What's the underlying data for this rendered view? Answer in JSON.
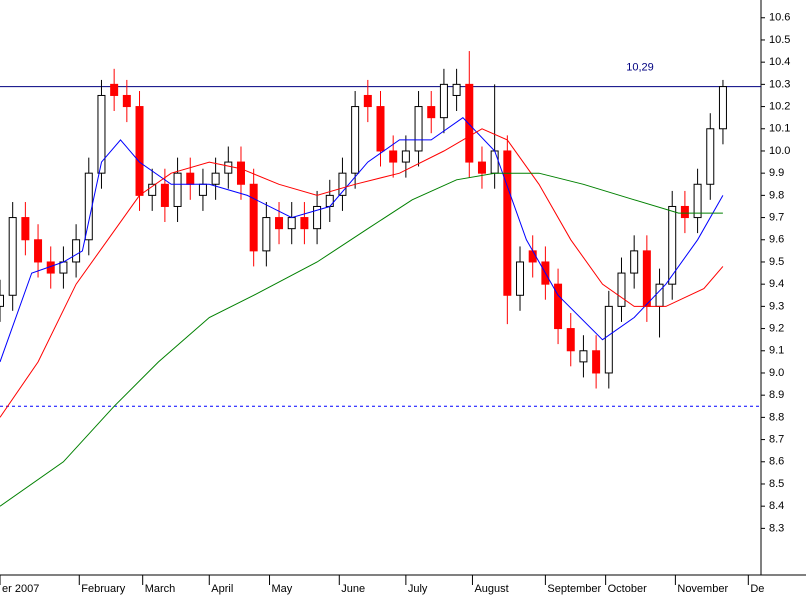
{
  "chart_data": {
    "type": "candlestick",
    "xlim": [
      0,
      240
    ],
    "ylim": [
      8.09,
      10.68
    ],
    "xticks": [
      {
        "value": 0,
        "label": "er 2007"
      },
      {
        "value": 25,
        "label": "February"
      },
      {
        "value": 45,
        "label": "March"
      },
      {
        "value": 66,
        "label": "April"
      },
      {
        "value": 85,
        "label": "May"
      },
      {
        "value": 107,
        "label": "June"
      },
      {
        "value": 128,
        "label": "July"
      },
      {
        "value": 149,
        "label": "August"
      },
      {
        "value": 172,
        "label": "September"
      },
      {
        "value": 191,
        "label": "October"
      },
      {
        "value": 213,
        "label": "November"
      },
      {
        "value": 236,
        "label": "De"
      }
    ],
    "yticks": [
      8.3,
      8.4,
      8.5,
      8.6,
      8.7,
      8.8,
      8.9,
      {
        "value": 9,
        "label": "9.0"
      },
      9.1,
      9.2,
      9.3,
      9.4,
      9.5,
      9.6,
      9.7,
      9.8,
      9.9,
      {
        "value": 10,
        "label": "10.0"
      },
      10.1,
      10.2,
      10.3,
      10.4,
      10.5,
      10.6
    ],
    "candles": {
      "up_color": "#ffffff",
      "down_color": "#ff0000",
      "x": [
        0,
        4,
        8,
        12,
        16,
        20,
        24,
        28,
        32,
        36,
        40,
        44,
        48,
        52,
        56,
        60,
        64,
        68,
        72,
        76,
        80,
        84,
        88,
        92,
        96,
        100,
        104,
        108,
        112,
        116,
        120,
        124,
        128,
        132,
        136,
        140,
        144,
        148,
        152,
        156,
        160,
        164,
        168,
        172,
        176,
        180,
        184,
        188,
        192,
        196,
        200,
        204,
        208,
        212,
        216,
        220,
        224,
        228
      ],
      "open": [
        9.3,
        9.35,
        9.7,
        9.6,
        9.5,
        9.45,
        9.5,
        9.6,
        9.9,
        10.3,
        10.25,
        10.2,
        9.8,
        9.85,
        9.75,
        9.9,
        9.8,
        9.85,
        9.9,
        9.95,
        9.85,
        9.55,
        9.7,
        9.65,
        9.7,
        9.65,
        9.75,
        9.8,
        9.9,
        10.25,
        10.2,
        10.0,
        9.95,
        10.0,
        10.2,
        10.15,
        10.25,
        10.3,
        9.95,
        9.9,
        10.0,
        9.35,
        9.55,
        9.5,
        9.4,
        9.2,
        9.05,
        9.1,
        9.0,
        9.3,
        9.45,
        9.55,
        9.3,
        9.4,
        9.75,
        9.7,
        9.85,
        10.1
      ],
      "high": [
        9.42,
        9.77,
        9.77,
        9.67,
        9.57,
        9.57,
        9.67,
        9.97,
        10.32,
        10.37,
        10.32,
        10.27,
        9.92,
        9.92,
        9.97,
        9.97,
        9.92,
        9.97,
        10.02,
        10.02,
        9.92,
        9.77,
        9.77,
        9.77,
        9.77,
        9.82,
        9.87,
        9.97,
        10.27,
        10.32,
        10.27,
        10.07,
        10.07,
        10.27,
        10.27,
        10.37,
        10.37,
        10.45,
        10.02,
        10.3,
        10.07,
        9.57,
        9.62,
        9.57,
        9.47,
        9.27,
        9.17,
        9.17,
        9.37,
        9.52,
        9.62,
        9.62,
        9.47,
        9.82,
        9.82,
        9.92,
        10.17,
        10.32
      ],
      "low": [
        9.23,
        9.28,
        9.53,
        9.43,
        9.38,
        9.38,
        9.43,
        9.53,
        9.83,
        10.18,
        10.13,
        9.73,
        9.73,
        9.68,
        9.68,
        9.78,
        9.73,
        9.78,
        9.83,
        9.78,
        9.48,
        9.48,
        9.58,
        9.58,
        9.58,
        9.58,
        9.68,
        9.73,
        9.83,
        10.13,
        9.93,
        9.88,
        9.88,
        9.93,
        10.08,
        10.08,
        10.18,
        9.88,
        9.83,
        9.83,
        9.22,
        9.28,
        9.43,
        9.33,
        9.13,
        9.03,
        8.98,
        8.93,
        8.93,
        9.23,
        9.38,
        9.23,
        9.16,
        9.33,
        9.63,
        9.63,
        9.78,
        10.03
      ],
      "close": [
        9.35,
        9.7,
        9.6,
        9.5,
        9.45,
        9.5,
        9.6,
        9.9,
        10.25,
        10.25,
        10.2,
        9.8,
        9.85,
        9.75,
        9.9,
        9.85,
        9.85,
        9.9,
        9.95,
        9.85,
        9.55,
        9.7,
        9.65,
        9.7,
        9.65,
        9.75,
        9.8,
        9.9,
        10.2,
        10.2,
        10.0,
        9.95,
        10.0,
        10.2,
        10.15,
        10.3,
        10.3,
        9.95,
        9.9,
        10.0,
        9.35,
        9.5,
        9.5,
        9.4,
        9.2,
        9.1,
        9.1,
        9.0,
        9.3,
        9.45,
        9.55,
        9.3,
        9.4,
        9.75,
        9.7,
        9.85,
        10.1,
        10.29
      ]
    },
    "series": [
      {
        "color": "#0000ff",
        "x": [
          0,
          10,
          20,
          26,
          32,
          38,
          44,
          54,
          66,
          78,
          92,
          104,
          116,
          126,
          136,
          146,
          156,
          166,
          176,
          190,
          200,
          210,
          220,
          228
        ],
        "values": [
          9.05,
          9.45,
          9.5,
          9.55,
          9.95,
          10.05,
          9.95,
          9.85,
          9.85,
          9.8,
          9.7,
          9.75,
          9.95,
          10.05,
          10.05,
          10.15,
          10.0,
          9.6,
          9.35,
          9.15,
          9.25,
          9.4,
          9.6,
          9.8
        ]
      },
      {
        "color": "#ff0000",
        "x": [
          0,
          12,
          24,
          34,
          44,
          54,
          66,
          76,
          88,
          100,
          112,
          126,
          140,
          152,
          160,
          170,
          180,
          190,
          200,
          210,
          222,
          228
        ],
        "values": [
          8.8,
          9.05,
          9.4,
          9.6,
          9.8,
          9.9,
          9.95,
          9.92,
          9.85,
          9.8,
          9.85,
          9.9,
          10.0,
          10.1,
          10.05,
          9.85,
          9.6,
          9.4,
          9.3,
          9.3,
          9.38,
          9.48
        ]
      },
      {
        "color": "#008000",
        "x": [
          0,
          20,
          36,
          50,
          66,
          80,
          100,
          116,
          130,
          144,
          156,
          170,
          184,
          200,
          214,
          228
        ],
        "values": [
          8.4,
          8.6,
          8.85,
          9.05,
          9.25,
          9.35,
          9.5,
          9.65,
          9.78,
          9.87,
          9.9,
          9.9,
          9.85,
          9.78,
          9.72,
          9.72
        ]
      }
    ],
    "reference_lines": [
      {
        "value": 10.29,
        "label": "10,29",
        "color": "#000080",
        "dashed": false
      },
      {
        "value": 8.85,
        "color": "#0000ff",
        "dashed": true
      }
    ]
  }
}
